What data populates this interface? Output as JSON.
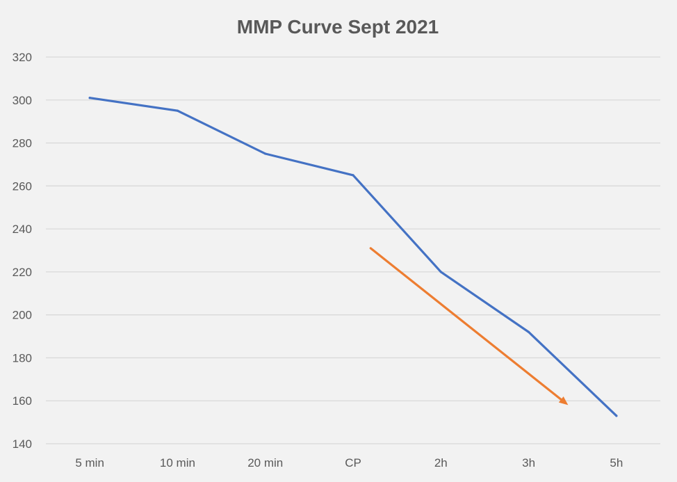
{
  "chart_data": {
    "type": "line",
    "title": "MMP Curve Sept 2021",
    "categories": [
      "5 min",
      "10 min",
      "20 min",
      "CP",
      "2h",
      "3h",
      "5h"
    ],
    "series": [
      {
        "values": [
          301,
          295,
          275,
          265,
          220,
          192,
          153
        ],
        "color": "#4472c4"
      }
    ],
    "annotation_arrow": {
      "from": {
        "category_position": 3.2,
        "y": 231
      },
      "to": {
        "category_position": 5.45,
        "y": 158
      },
      "color": "#ed7d31"
    },
    "ylim": [
      140,
      320
    ],
    "yticks": [
      140,
      160,
      180,
      200,
      220,
      240,
      260,
      280,
      300,
      320
    ],
    "grid": true,
    "background": "#f2f2f2"
  }
}
